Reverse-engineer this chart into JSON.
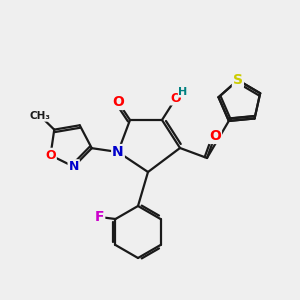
{
  "bg_color": "#efefef",
  "bond_color": "#1a1a1a",
  "atom_colors": {
    "O": "#ff0000",
    "N": "#0000cc",
    "S": "#cccc00",
    "F": "#cc00cc",
    "OH_H": "#008080",
    "OH_O": "#ff0000",
    "C": "#1a1a1a"
  },
  "figsize": [
    3.0,
    3.0
  ],
  "dpi": 100
}
